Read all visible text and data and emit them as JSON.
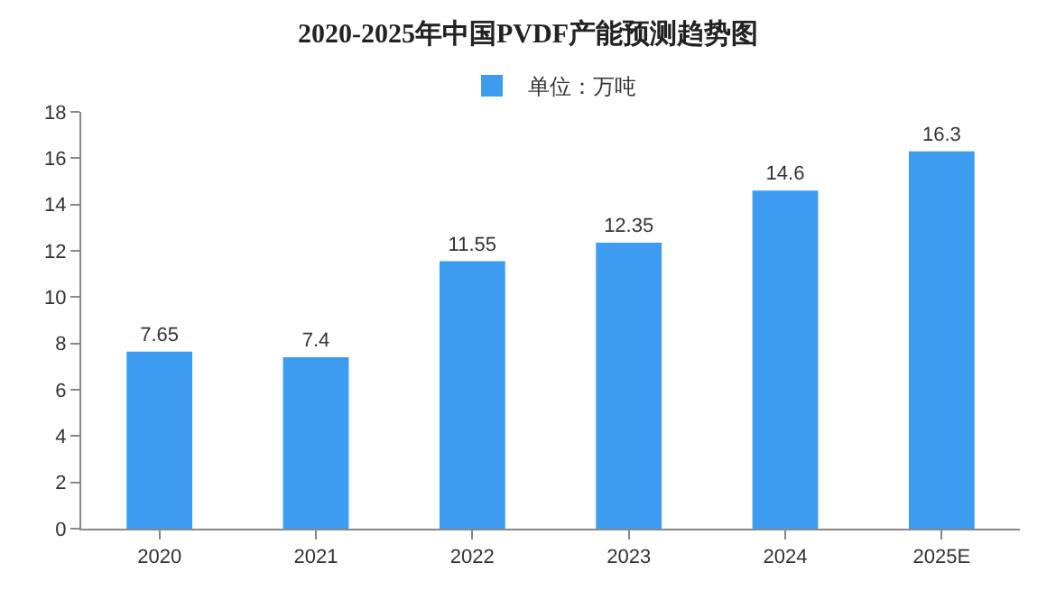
{
  "chart_data": {
    "type": "bar",
    "title": "2020-2025年中国PVDF产能预测趋势图",
    "categories": [
      "2020",
      "2021",
      "2022",
      "2023",
      "2024",
      "2025E"
    ],
    "series": [
      {
        "name": "单位：万吨",
        "color": "#3d9cf0",
        "values": [
          7.65,
          7.4,
          11.55,
          12.35,
          14.6,
          16.3
        ]
      }
    ],
    "ylim": [
      0,
      18
    ],
    "yticks": [
      0,
      2,
      4,
      6,
      8,
      10,
      12,
      14,
      16,
      18
    ],
    "data_labels": true,
    "legend": "top"
  }
}
